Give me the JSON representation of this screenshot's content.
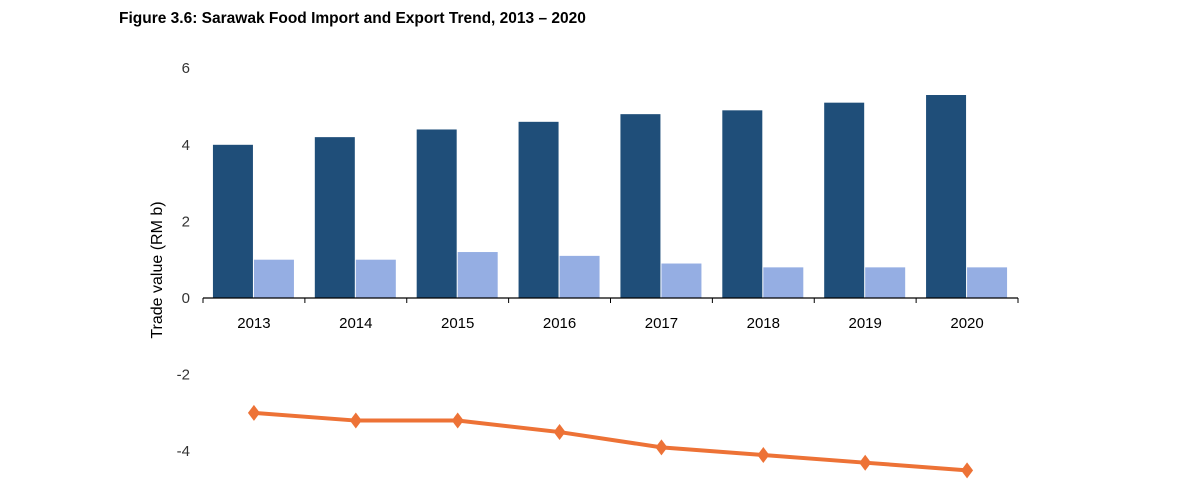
{
  "chart_data": {
    "type": "bar",
    "title": "Figure 3.6: Sarawak Food Import and Export Trend, 2013 – 2020",
    "xlabel": "",
    "ylabel": "Trade value (RM b)",
    "ylim": [
      -4.5,
      6
    ],
    "yticks": [
      -4,
      -2,
      0,
      2,
      4,
      6
    ],
    "grid": false,
    "categories": [
      "2013",
      "2014",
      "2015",
      "2016",
      "2017",
      "2018",
      "2019",
      "2020"
    ],
    "series": [
      {
        "type": "bar",
        "color": "#1f4e79",
        "values": [
          4.0,
          4.2,
          4.4,
          4.6,
          4.8,
          4.9,
          5.1,
          5.3
        ]
      },
      {
        "type": "bar",
        "color": "#95aee3",
        "values": [
          1.0,
          1.0,
          1.2,
          1.1,
          0.9,
          0.8,
          0.8,
          0.8
        ]
      },
      {
        "type": "line",
        "marker": "diamond",
        "color": "#ed7236",
        "values": [
          -3.0,
          -3.2,
          -3.2,
          -3.5,
          -3.9,
          -4.1,
          -4.3,
          -4.5
        ]
      }
    ]
  }
}
